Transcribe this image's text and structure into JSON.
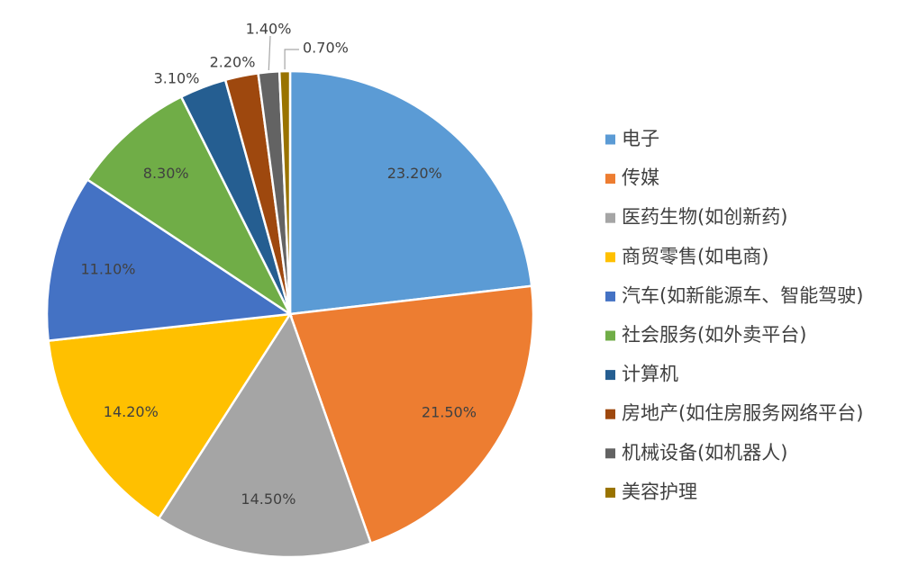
{
  "chart_data": {
    "type": "pie",
    "title": "",
    "legend_position": "right",
    "slices": [
      {
        "label": "电子",
        "value": 23.2,
        "value_text": "23.20%",
        "color": "#5B9BD5"
      },
      {
        "label": "传媒",
        "value": 21.5,
        "value_text": "21.50%",
        "color": "#ED7D31"
      },
      {
        "label": "医药生物(如创新药)",
        "value": 14.5,
        "value_text": "14.50%",
        "color": "#A5A5A5"
      },
      {
        "label": "商贸零售(如电商)",
        "value": 14.2,
        "value_text": "14.20%",
        "color": "#FFC000"
      },
      {
        "label": "汽车(如新能源车、智能驾驶)",
        "value": 11.1,
        "value_text": "11.10%",
        "color": "#4472C4"
      },
      {
        "label": "社会服务(如外卖平台)",
        "value": 8.3,
        "value_text": "8.30%",
        "color": "#70AD47"
      },
      {
        "label": "计算机",
        "value": 3.1,
        "value_text": "3.10%",
        "color": "#255E91"
      },
      {
        "label": "房地产(如住房服务网络平台)",
        "value": 2.2,
        "value_text": "2.20%",
        "color": "#9E480E"
      },
      {
        "label": "机械设备(如机器人)",
        "value": 1.4,
        "value_text": "1.40%",
        "color": "#636363"
      },
      {
        "label": "美容护理",
        "value": 0.7,
        "value_text": "0.70%",
        "color": "#997300"
      }
    ]
  }
}
